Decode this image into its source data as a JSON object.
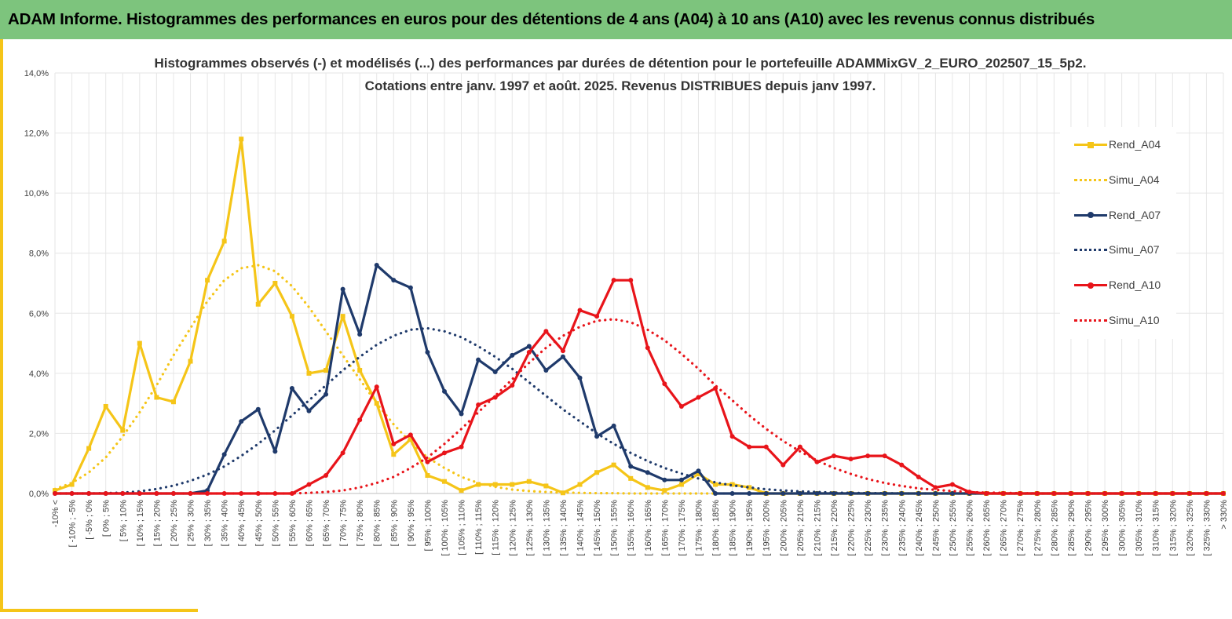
{
  "banner": {
    "title": "ADAM Informe. Histogrammes des performances en euros pour des détentions de 4 ans (A04) à 10 ans (A10) avec les revenus connus distribués"
  },
  "colors": {
    "banner": "#7dc47d",
    "frame": "#f5c518",
    "a04": "#f5c518",
    "a07": "#1f3a6b",
    "a10": "#e8141a"
  },
  "chart_data": {
    "type": "line",
    "title_lines": [
      "Histogrammes observés (-) et modélisés (...) des performances par durées de détention pour le portefeuille ADAMMixGV_2_EURO_202507_15_5p2.",
      "Cotations entre janv. 1997 et août. 2025. Revenus DISTRIBUES depuis janv 1997."
    ],
    "ylim": [
      0,
      14
    ],
    "yticks": [
      "0,0%",
      "2,0%",
      "4,0%",
      "6,0%",
      "8,0%",
      "10,0%",
      "12,0%",
      "14,0%"
    ],
    "grid": true,
    "legend_position": "right",
    "categories": [
      "-10% <",
      "[ -10% ; -5%",
      "[ -5% ; 0%",
      "[ 0% ; 5%",
      "[ 5% ; 10%",
      "[ 10% ; 15%",
      "[ 15% ; 20%",
      "[ 20% ; 25%",
      "[ 25% ; 30%",
      "[ 30% ; 35%",
      "[ 35% ; 40%",
      "[ 40% ; 45%",
      "[ 45% ; 50%",
      "[ 50% ; 55%",
      "[ 55% ; 60%",
      "[ 60% ; 65%",
      "[ 65% ; 70%",
      "[ 70% ; 75%",
      "[ 75% ; 80%",
      "[ 80% ; 85%",
      "[ 85% ; 90%",
      "[ 90% ; 95%",
      "[ 95% ; 100%",
      "[ 100% ; 105%",
      "[ 105% ; 110%",
      "[ 110% ; 115%",
      "[ 115% ; 120%",
      "[ 120% ; 125%",
      "[ 125% ; 130%",
      "[ 130% ; 135%",
      "[ 135% ; 140%",
      "[ 140% ; 145%",
      "[ 145% ; 150%",
      "[ 150% ; 155%",
      "[ 155% ; 160%",
      "[ 160% ; 165%",
      "[ 165% ; 170%",
      "[ 170% ; 175%",
      "[ 175% ; 180%",
      "[ 180% ; 185%",
      "[ 185% ; 190%",
      "[ 190% ; 195%",
      "[ 195% ; 200%",
      "[ 200% ; 205%",
      "[ 205% ; 210%",
      "[ 210% ; 215%",
      "[ 215% ; 220%",
      "[ 220% ; 225%",
      "[ 225% ; 230%",
      "[ 230% ; 235%",
      "[ 235% ; 240%",
      "[ 240% ; 245%",
      "[ 245% ; 250%",
      "[ 250% ; 255%",
      "[ 255% ; 260%",
      "[ 260% ; 265%",
      "[ 265% ; 270%",
      "[ 270% ; 275%",
      "[ 275% ; 280%",
      "[ 280% ; 285%",
      "[ 285% ; 290%",
      "[ 290% ; 295%",
      "[ 295% ; 300%",
      "[ 300% ; 305%",
      "[ 305% ; 310%",
      "[ 310% ; 315%",
      "[ 315% ; 320%",
      "[ 320% ; 325%",
      "[ 325% ; 330%",
      "> 330%"
    ],
    "series": [
      {
        "name": "Rend_A04",
        "style": "solid",
        "color": "#f5c518",
        "marker": "square",
        "values": [
          0.1,
          0.3,
          1.5,
          2.9,
          2.1,
          5.0,
          3.2,
          3.05,
          4.4,
          7.1,
          8.4,
          11.8,
          6.3,
          7.0,
          5.9,
          4.0,
          4.1,
          5.9,
          4.1,
          3.0,
          1.3,
          1.8,
          0.6,
          0.4,
          0.1,
          0.3,
          0.3,
          0.3,
          0.4,
          0.25,
          0.02,
          0.3,
          0.7,
          0.95,
          0.5,
          0.2,
          0.1,
          0.3,
          0.65,
          0.3,
          0.3,
          0.2,
          0,
          0,
          0,
          0,
          0,
          0,
          0,
          0,
          0,
          0,
          0,
          0,
          0,
          0,
          0,
          0,
          0,
          0,
          0,
          0,
          0,
          0,
          0,
          0,
          0,
          0,
          0,
          0
        ]
      },
      {
        "name": "Simu_A04",
        "style": "dotted",
        "color": "#f5c518",
        "values": [
          0.15,
          0.35,
          0.7,
          1.2,
          1.9,
          2.7,
          3.6,
          4.6,
          5.5,
          6.4,
          7.1,
          7.5,
          7.6,
          7.4,
          6.9,
          6.2,
          5.4,
          4.6,
          3.8,
          3.0,
          2.3,
          1.7,
          1.2,
          0.85,
          0.55,
          0.35,
          0.22,
          0.13,
          0.08,
          0.05,
          0.03,
          0.02,
          0.01,
          0.01,
          0,
          0,
          0,
          0,
          0,
          0,
          0,
          0,
          0,
          0,
          0,
          0,
          0,
          0,
          0,
          0,
          0,
          0,
          0,
          0,
          0,
          0,
          0,
          0,
          0,
          0,
          0,
          0,
          0,
          0,
          0,
          0,
          0,
          0,
          0,
          0
        ]
      },
      {
        "name": "Rend_A07",
        "style": "solid",
        "color": "#1f3a6b",
        "marker": "circle",
        "values": [
          0,
          0,
          0,
          0,
          0,
          0,
          0,
          0,
          0,
          0.1,
          1.3,
          2.4,
          2.8,
          1.4,
          3.5,
          2.75,
          3.3,
          6.8,
          5.3,
          7.6,
          7.1,
          6.85,
          4.7,
          3.4,
          2.65,
          4.45,
          4.05,
          4.6,
          4.9,
          4.1,
          4.55,
          3.85,
          1.9,
          2.25,
          0.9,
          0.7,
          0.45,
          0.45,
          0.75,
          0,
          0,
          0,
          0,
          0,
          0,
          0,
          0,
          0,
          0,
          0,
          0,
          0,
          0,
          0,
          0,
          0,
          0,
          0,
          0,
          0,
          0,
          0,
          0,
          0,
          0,
          0,
          0,
          0,
          0,
          0
        ]
      },
      {
        "name": "Simu_A07",
        "style": "dotted",
        "color": "#1f3a6b",
        "values": [
          0,
          0,
          0,
          0.01,
          0.03,
          0.07,
          0.15,
          0.26,
          0.42,
          0.63,
          0.9,
          1.25,
          1.65,
          2.1,
          2.6,
          3.1,
          3.6,
          4.1,
          4.55,
          4.95,
          5.25,
          5.45,
          5.5,
          5.4,
          5.2,
          4.9,
          4.55,
          4.15,
          3.7,
          3.25,
          2.8,
          2.4,
          2.0,
          1.65,
          1.35,
          1.08,
          0.85,
          0.66,
          0.5,
          0.37,
          0.27,
          0.2,
          0.14,
          0.1,
          0.07,
          0.05,
          0.03,
          0.02,
          0.01,
          0.01,
          0,
          0,
          0,
          0,
          0,
          0,
          0,
          0,
          0,
          0,
          0,
          0,
          0,
          0,
          0,
          0,
          0,
          0,
          0,
          0
        ]
      },
      {
        "name": "Rend_A10",
        "style": "solid",
        "color": "#e8141a",
        "marker": "circle",
        "values": [
          0,
          0,
          0,
          0,
          0,
          0,
          0,
          0,
          0,
          0,
          0,
          0,
          0,
          0,
          0,
          0.3,
          0.6,
          1.35,
          2.45,
          3.55,
          1.65,
          1.95,
          1.05,
          1.35,
          1.55,
          2.95,
          3.2,
          3.6,
          4.7,
          5.4,
          4.75,
          6.1,
          5.9,
          7.1,
          7.1,
          4.85,
          3.65,
          2.9,
          3.2,
          3.5,
          1.9,
          1.55,
          1.55,
          0.95,
          1.55,
          1.05,
          1.25,
          1.15,
          1.25,
          1.25,
          0.95,
          0.55,
          0.2,
          0.3,
          0.05,
          0,
          0,
          0,
          0,
          0,
          0,
          0,
          0,
          0,
          0,
          0,
          0,
          0,
          0,
          0
        ]
      },
      {
        "name": "Simu_A10",
        "style": "dotted",
        "color": "#e8141a",
        "values": [
          0,
          0,
          0,
          0,
          0,
          0,
          0,
          0,
          0,
          0,
          0,
          0,
          0,
          0,
          0,
          0.02,
          0.05,
          0.1,
          0.2,
          0.35,
          0.55,
          0.85,
          1.2,
          1.65,
          2.15,
          2.7,
          3.25,
          3.8,
          4.35,
          4.85,
          5.25,
          5.55,
          5.75,
          5.8,
          5.7,
          5.45,
          5.1,
          4.65,
          4.15,
          3.6,
          3.1,
          2.6,
          2.15,
          1.75,
          1.4,
          1.1,
          0.85,
          0.65,
          0.48,
          0.35,
          0.25,
          0.17,
          0.12,
          0.08,
          0.05,
          0.03,
          0.02,
          0.01,
          0,
          0,
          0,
          0,
          0,
          0,
          0,
          0,
          0,
          0,
          0,
          0
        ]
      }
    ]
  }
}
